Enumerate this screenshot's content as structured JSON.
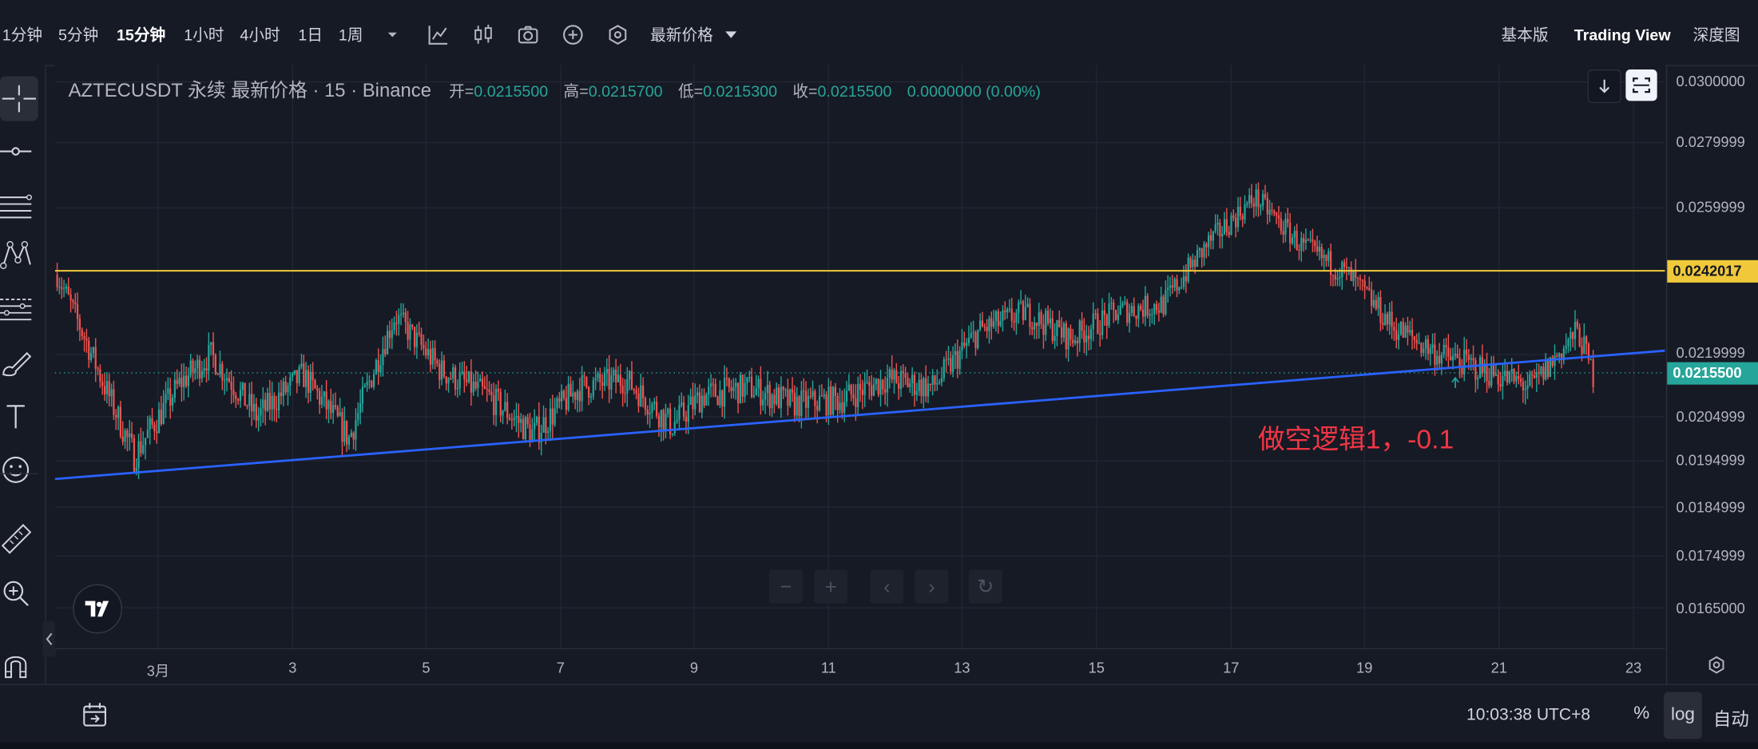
{
  "toolbar": {
    "timeframes": [
      "1分钟",
      "5分钟",
      "15分钟",
      "1小时",
      "4小时",
      "1日",
      "1周"
    ],
    "active_timeframe": "15分钟",
    "price_type": "最新价格",
    "views": {
      "basic": "基本版",
      "tradingview": "Trading View",
      "depth": "深度图"
    }
  },
  "legend": {
    "symbol": "AZTECUSDT 永续 最新价格 · 15 · Binance",
    "open_label": "开=",
    "open": "0.0215500",
    "high_label": "高=",
    "high": "0.0215700",
    "low_label": "低=",
    "low": "0.0215300",
    "close_label": "收=",
    "close": "0.0215500",
    "change": "0.0000000 (0.00%)"
  },
  "chart_data": {
    "type": "candlestick",
    "symbol": "AZTECUSDT",
    "interval": "15",
    "yscale": "log",
    "y_ticks": [
      "0.0300000",
      "0.0279999",
      "0.0259999",
      "0.0242017",
      "0.0219999",
      "0.0215500",
      "0.0204999",
      "0.0194999",
      "0.0184999",
      "0.0174999",
      "0.0165000"
    ],
    "x_ticks": [
      "3月",
      "3",
      "5",
      "7",
      "9",
      "11",
      "13",
      "15",
      "17",
      "19",
      "21",
      "23"
    ],
    "horizontal_line": {
      "price": "0.0242017",
      "color": "#f0c93a"
    },
    "last_price": {
      "price": "0.0215500",
      "color": "#26a69a"
    },
    "trend_line": {
      "color": "#2962ff",
      "from": {
        "x": "3月",
        "y": 0.0191
      },
      "to": {
        "x": "23",
        "y": 0.0221
      }
    },
    "price_path": {
      "x": [
        0,
        0.03,
        0.05,
        0.08,
        0.1,
        0.13,
        0.16,
        0.19,
        0.22,
        0.25,
        0.28,
        0.31,
        0.34,
        0.37,
        0.4,
        0.42,
        0.45,
        0.48,
        0.51,
        0.54,
        0.57,
        0.6,
        0.63,
        0.66,
        0.69,
        0.72,
        0.75,
        0.78,
        0.81,
        0.84,
        0.87,
        0.9,
        0.93,
        0.96,
        0.99,
        1
      ],
      "y": [
        0.0241,
        0.0213,
        0.0196,
        0.0213,
        0.022,
        0.0205,
        0.0215,
        0.02,
        0.023,
        0.0216,
        0.021,
        0.0201,
        0.0212,
        0.0214,
        0.0203,
        0.021,
        0.0212,
        0.0208,
        0.0209,
        0.0214,
        0.0212,
        0.0226,
        0.0231,
        0.0224,
        0.0231,
        0.0233,
        0.025,
        0.0263,
        0.0249,
        0.0241,
        0.0227,
        0.022,
        0.0216,
        0.0212,
        0.0226,
        0.0215
      ]
    }
  },
  "annotation": "做空逻辑1，-0.1",
  "bottom": {
    "time": "10:03:38 UTC+8",
    "percent": "%",
    "log": "log",
    "auto": "自动"
  },
  "colors": {
    "up": "#26a69a",
    "down": "#ef5350",
    "trend": "#2962ff",
    "hline": "#f0c93a",
    "annotation": "#f23645"
  }
}
